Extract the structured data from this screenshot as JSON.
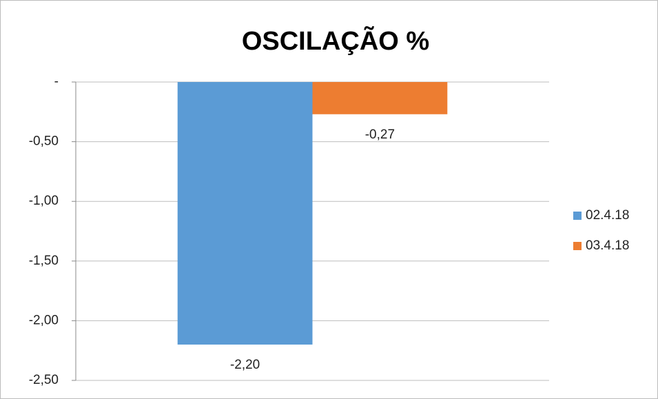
{
  "chart_data": {
    "type": "bar",
    "title": "OSCILAÇÃO %",
    "categories": [
      null
    ],
    "series": [
      {
        "name": "02.4.18",
        "color": "#5b9bd5",
        "values": [
          -2.2
        ],
        "value_labels": [
          "-2,20"
        ]
      },
      {
        "name": "03.4.18",
        "color": "#ed7d31",
        "values": [
          -0.27
        ],
        "value_labels": [
          "-0,27"
        ]
      }
    ],
    "ylim": [
      -2.5,
      0
    ],
    "yticks": [
      {
        "value": 0,
        "label": "-"
      },
      {
        "value": -0.5,
        "label": "-0,50"
      },
      {
        "value": -1,
        "label": "-1,00"
      },
      {
        "value": -1.5,
        "label": "-1,50"
      },
      {
        "value": -2,
        "label": "-2,00"
      },
      {
        "value": -2.5,
        "label": "-2,50"
      }
    ],
    "grid": true,
    "legend": "right"
  }
}
